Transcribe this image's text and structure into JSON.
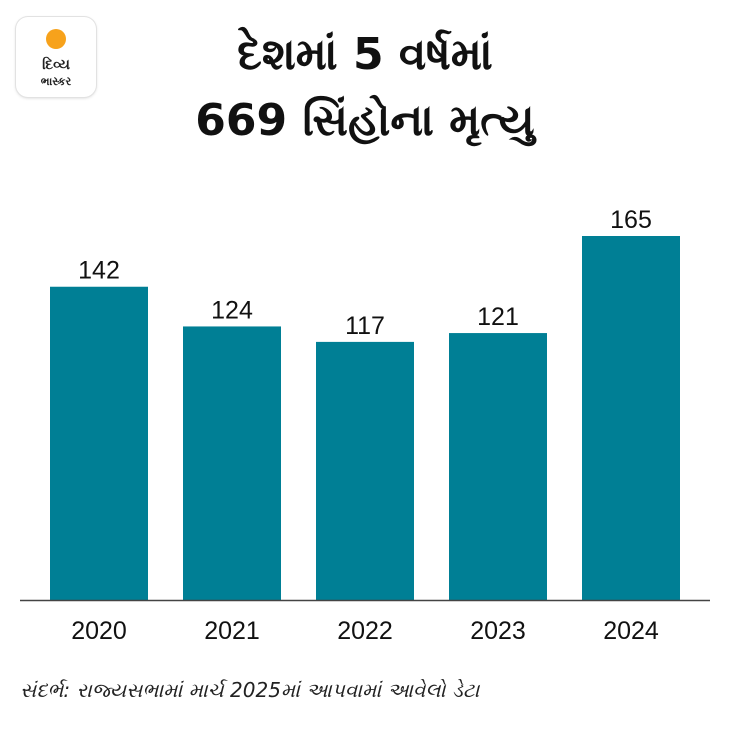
{
  "logo": {
    "line1": "દિવ્ય",
    "line2": "ભાસ્કર",
    "sun_color": "#f7a21b"
  },
  "title": {
    "line1": "દેશમાં 5 વર્ષમાં",
    "line2": "669 સિંહોના મૃત્યુ"
  },
  "source": "સંદર્ભ: રાજ્યસભામાં માર્ચ 2025માં આપવામાં આવેલો ડેટા",
  "chart_data": {
    "type": "bar",
    "categories": [
      "2020",
      "2021",
      "2022",
      "2023",
      "2024"
    ],
    "values": [
      142,
      124,
      117,
      121,
      165
    ],
    "data_labels": [
      "142",
      "124",
      "117",
      "121",
      "165"
    ],
    "ylim": [
      0,
      165
    ],
    "bar_color": "#007f95",
    "grid": false,
    "legend": "none"
  }
}
